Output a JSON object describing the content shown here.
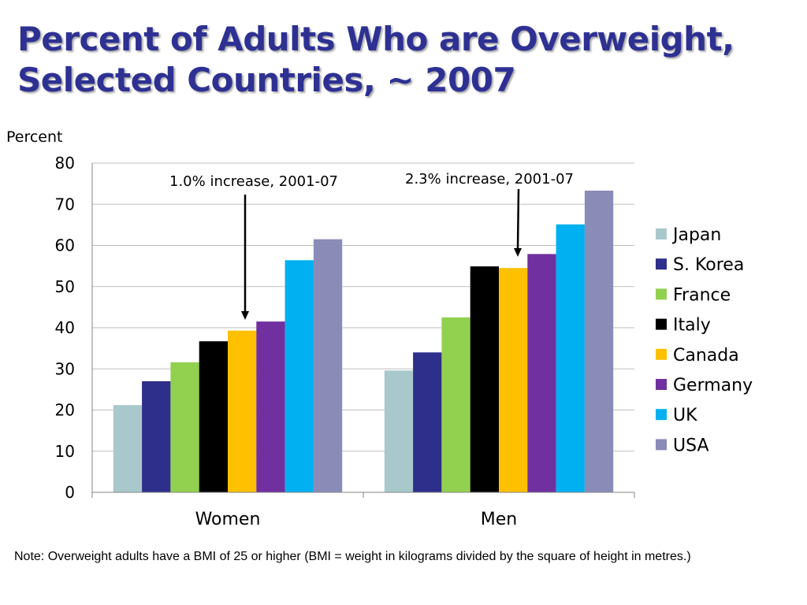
{
  "title_line1": "Percent of Adults Who are Overweight,",
  "title_line2": "Selected Countries, ~ 2007",
  "note": "Note: Overweight adults have a BMI of 25 or higher (BMI = weight in kilograms divided by the square of height in metres.)",
  "chart_data": {
    "type": "bar",
    "ylabel": "Percent",
    "xlabel": "",
    "categories": [
      "Women",
      "Men"
    ],
    "ylim": [
      0,
      80
    ],
    "yticks": [
      0,
      10,
      20,
      30,
      40,
      50,
      60,
      70,
      80
    ],
    "grid": true,
    "legend_position": "right",
    "series": [
      {
        "name": "Japan",
        "color": "#A8C8CC",
        "values": [
          21.2,
          29.6
        ]
      },
      {
        "name": "S. Korea",
        "color": "#2E2E8B",
        "values": [
          27.0,
          34.0
        ]
      },
      {
        "name": "France",
        "color": "#92D050",
        "values": [
          31.6,
          42.5
        ]
      },
      {
        "name": "Italy",
        "color": "#000000",
        "values": [
          36.7,
          54.9
        ]
      },
      {
        "name": "Canada",
        "color": "#FFC000",
        "values": [
          39.3,
          54.5
        ]
      },
      {
        "name": "Germany",
        "color": "#7030A0",
        "values": [
          41.5,
          57.9
        ]
      },
      {
        "name": "UK",
        "color": "#00B0F0",
        "values": [
          56.4,
          65.1
        ]
      },
      {
        "name": "USA",
        "color": "#8B8BB8",
        "values": [
          61.5,
          73.3
        ]
      }
    ],
    "annotations": [
      {
        "text": "1.0% increase, 2001-07",
        "category": "Women",
        "series": "Canada"
      },
      {
        "text": "2.3% increase, 2001-07",
        "category": "Men",
        "series": "Canada"
      }
    ]
  }
}
